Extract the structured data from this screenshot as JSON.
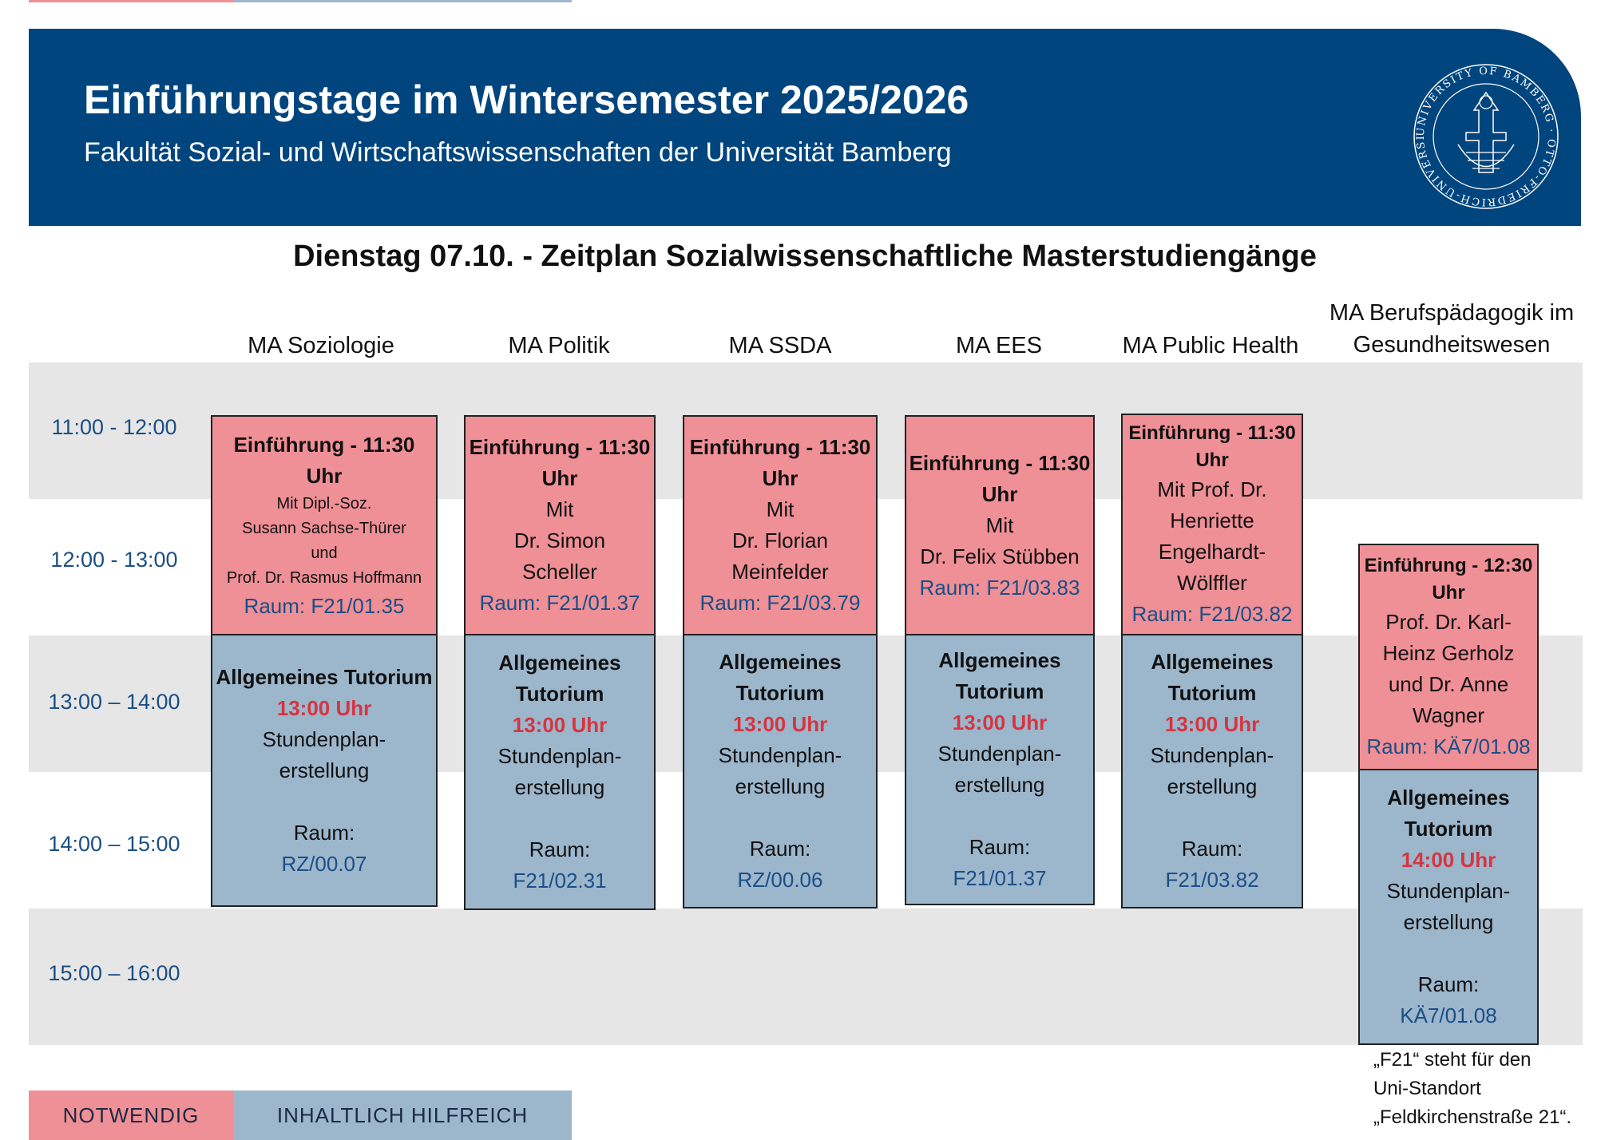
{
  "header": {
    "title": "Einführungstage im Wintersemester 2025/2026",
    "subtitle": "Fakultät Sozial- und Wirtschaftswissenschaften der Universität Bamberg",
    "seal_text": "UNIVERSITY OF BAMBERG · OTTO-FRIEDRICH-UNIVERSITÄT BAMBERG"
  },
  "page_title": "Dienstag 07.10. - Zeitplan Sozialwissenschaftliche Masterstudiengänge",
  "columns": [
    {
      "label": "MA  Soziologie"
    },
    {
      "label": "MA Politik"
    },
    {
      "label": "MA SSDA"
    },
    {
      "label": "MA EES"
    },
    {
      "label": "MA Public Health"
    },
    {
      "label_line1": "MA Berufspädagogik im",
      "label_line2": "Gesundheitswesen"
    }
  ],
  "times": [
    "11:00 - 12:00",
    "12:00 - 13:00",
    "13:00 – 14:00",
    "14:00 – 15:00",
    "15:00 – 16:00"
  ],
  "intro": [
    {
      "title1": "Einführung - 11:30",
      "title2": "Uhr",
      "p1": "Mit Dipl.-Soz.",
      "p2": "Susann Sachse-Thürer",
      "p3": "und",
      "p4": "Prof. Dr. Rasmus Hoffmann",
      "room": "Raum: F21/01.35"
    },
    {
      "title1": "Einführung - 11:30",
      "title2": "Uhr",
      "p1": "Mit",
      "p2": "Dr. Simon",
      "p3": "Scheller",
      "room": "Raum: F21/01.37"
    },
    {
      "title1": "Einführung - 11:30",
      "title2": "Uhr",
      "p1": "Mit",
      "p2": "Dr. Florian",
      "p3": "Meinfelder",
      "room": "Raum: F21/03.79"
    },
    {
      "title1": "Einführung - 11:30",
      "title2": "Uhr",
      "p1": "Mit",
      "p2": "Dr. Felix Stübben",
      "room": "Raum: F21/03.83"
    },
    {
      "title1": "Einführung - 11:30",
      "title2": "Uhr",
      "p1": "Mit Prof. Dr.",
      "p2": "Henriette",
      "p3": "Engelhardt-",
      "p4": "Wölffler",
      "room": "Raum: F21/03.82"
    },
    {
      "title1": "Einführung - 12:30",
      "title2": "Uhr",
      "p1": "Prof. Dr. Karl-",
      "p2": "Heinz Gerholz",
      "p3": "und Dr. Anne",
      "p4": "Wagner",
      "room": "Raum: KÄ7/01.08"
    }
  ],
  "tutorial": [
    {
      "title1": "Allgemeines Tutorium",
      "time": "13:00 Uhr",
      "p1": "Stundenplan-",
      "p2": "erstellung",
      "room_label": "Raum:",
      "room": "RZ/00.07"
    },
    {
      "title1": "Allgemeines",
      "title2": "Tutorium",
      "time": "13:00 Uhr",
      "p1": "Stundenplan-",
      "p2": "erstellung",
      "room_label": "Raum:",
      "room": "F21/02.31"
    },
    {
      "title1": "Allgemeines",
      "title2": "Tutorium",
      "time": "13:00 Uhr",
      "p1": "Stundenplan-",
      "p2": "erstellung",
      "room_label": "Raum:",
      "room": "RZ/00.06"
    },
    {
      "title1": "Allgemeines",
      "title2": "Tutorium",
      "time": "13:00 Uhr",
      "p1": "Stundenplan-",
      "p2": "erstellung",
      "room_label": "Raum:",
      "room": "F21/01.37"
    },
    {
      "title1": "Allgemeines",
      "title2": "Tutorium",
      "time": "13:00 Uhr",
      "p1": "Stundenplan-",
      "p2": "erstellung",
      "room_label": "Raum:",
      "room": "F21/03.82"
    },
    {
      "title1": "Allgemeines",
      "title2": "Tutorium",
      "time": "14:00 Uhr",
      "p1": "Stundenplan-",
      "p2": "erstellung",
      "room_label": "Raum:",
      "room": "KÄ7/01.08"
    }
  ],
  "legend": {
    "required": "NOTWENDIG",
    "helpful": "INHALTLICH HILFREICH"
  },
  "note": {
    "l1": "„F21“ steht für den",
    "l2": "Uni-Standort",
    "l3": "„Feldkirchenstraße 21“."
  },
  "colors": {
    "header_blue": "#00457e",
    "required_pink": "#ef8f96",
    "helpful_blue": "#9cb6cc",
    "time_red": "#d63540",
    "room_blue": "#1a4f86",
    "band_gray": "#e6e6e6"
  }
}
